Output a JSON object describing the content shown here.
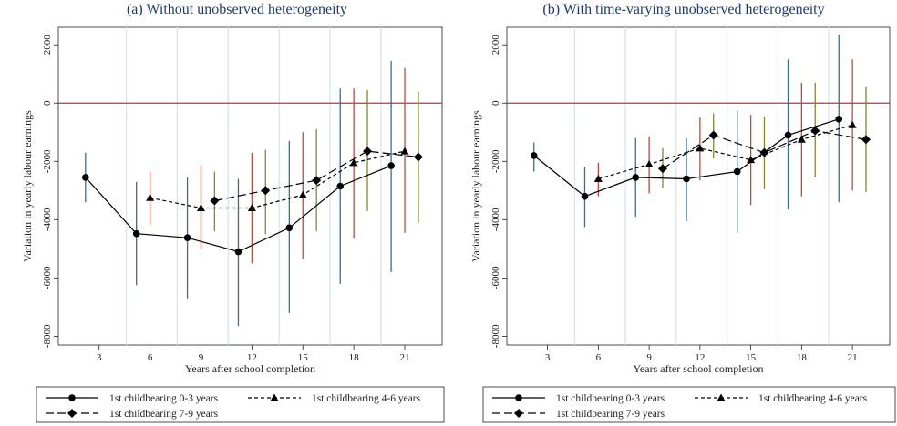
{
  "chart_data": [
    {
      "type": "line",
      "title": "(a) Without unobserved heterogeneity",
      "xlabel": "Years after school completion",
      "ylabel": "Variation in yearly labour earnings",
      "xticks": [
        3,
        6,
        9,
        12,
        15,
        18,
        21
      ],
      "yticks": [
        2000,
        0,
        -2000,
        -4000,
        -6000,
        -8000
      ],
      "xlim": [
        0.6,
        23.2
      ],
      "ylim": [
        -8300,
        2600
      ],
      "reference_line_y": 0,
      "grid": "vertical light lines",
      "legend_position": "bottom",
      "series": [
        {
          "name": "1st childbearing 0-3 years",
          "style": "solid-circle",
          "x": [
            2.2,
            5.2,
            8.2,
            11.2,
            14.2,
            17.2,
            20.2
          ],
          "y": [
            -2550,
            -4480,
            -4620,
            -5100,
            -4280,
            -2850,
            -2150
          ],
          "ci_low": [
            -3400,
            -6250,
            -6700,
            -7650,
            -7200,
            -6200,
            -5800
          ],
          "ci_high": [
            -1700,
            -2700,
            -2550,
            -2600,
            -1300,
            500,
            1450
          ],
          "ci_color": "#3e6b91"
        },
        {
          "name": "1st childbearing 4-6 years",
          "style": "dash-triangle",
          "x": [
            6.0,
            9.0,
            12.0,
            15.0,
            18.0,
            21.0
          ],
          "y": [
            -3250,
            -3600,
            -3600,
            -3150,
            -2050,
            -1650
          ],
          "ci_low": [
            -4200,
            -5000,
            -5500,
            -5350,
            -4650,
            -4450
          ],
          "ci_high": [
            -2350,
            -2150,
            -1700,
            -1000,
            500,
            1200
          ],
          "ci_color": "#b84a44"
        },
        {
          "name": "1st childbearing 7-9 years",
          "style": "longdash-diamond",
          "x": [
            9.8,
            12.8,
            15.8,
            18.8,
            21.8
          ],
          "y": [
            -3350,
            -3000,
            -2650,
            -1650,
            -1850
          ],
          "ci_low": [
            -4400,
            -4500,
            -4400,
            -3700,
            -4100
          ],
          "ci_high": [
            -2350,
            -1600,
            -900,
            450,
            400
          ],
          "ci_color": "#7a8a3b"
        }
      ],
      "legend": [
        "1st childbearing 0-3 years",
        "1st childbearing 4-6 years",
        "1st childbearing 7-9 years"
      ]
    },
    {
      "type": "line",
      "title": "(b) With time-varying unobserved heterogeneity",
      "xlabel": "Years after school completion",
      "ylabel": "Variation in yearly labour earnings",
      "xticks": [
        3,
        6,
        9,
        12,
        15,
        18,
        21
      ],
      "yticks": [
        2000,
        0,
        -2000,
        -4000,
        -6000,
        -8000
      ],
      "xlim": [
        0.6,
        23.2
      ],
      "ylim": [
        -8300,
        2600
      ],
      "reference_line_y": 0,
      "grid": "vertical light lines",
      "legend_position": "bottom",
      "series": [
        {
          "name": "1st childbearing 0-3 years",
          "style": "solid-circle",
          "x": [
            2.2,
            5.2,
            8.2,
            11.2,
            14.2,
            17.2,
            20.2
          ],
          "y": [
            -1800,
            -3200,
            -2550,
            -2600,
            -2350,
            -1100,
            -550
          ],
          "ci_low": [
            -2350,
            -4250,
            -3900,
            -4050,
            -4450,
            -3650,
            -3400
          ],
          "ci_high": [
            -1350,
            -2200,
            -1200,
            -1200,
            -250,
            1500,
            2350
          ],
          "ci_color": "#3e6b91"
        },
        {
          "name": "1st childbearing 4-6 years",
          "style": "dash-triangle",
          "x": [
            6.0,
            9.0,
            12.0,
            15.0,
            18.0,
            21.0
          ],
          "y": [
            -2600,
            -2100,
            -1550,
            -1950,
            -1250,
            -750
          ],
          "ci_low": [
            -3200,
            -3100,
            -2650,
            -3500,
            -3200,
            -3000
          ],
          "ci_high": [
            -2050,
            -1150,
            -500,
            -400,
            700,
            1500
          ],
          "ci_color": "#b84a44"
        },
        {
          "name": "1st childbearing 7-9 years",
          "style": "longdash-diamond",
          "x": [
            9.8,
            12.8,
            15.8,
            18.8,
            21.8
          ],
          "y": [
            -2250,
            -1100,
            -1700,
            -950,
            -1250
          ],
          "ci_low": [
            -2900,
            -1900,
            -2950,
            -2550,
            -3050
          ],
          "ci_high": [
            -1550,
            -350,
            -450,
            700,
            550
          ],
          "ci_color": "#7a8a3b"
        }
      ],
      "legend": [
        "1st childbearing 0-3 years",
        "1st childbearing 4-6 years",
        "1st childbearing 7-9 years"
      ]
    }
  ]
}
